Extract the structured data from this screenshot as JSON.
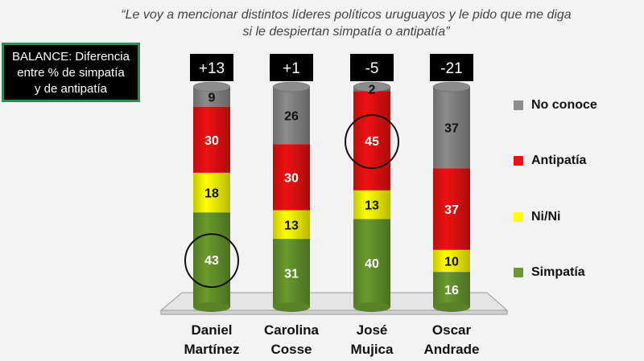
{
  "title": "“Le voy a mencionar distintos líderes políticos uruguayos y le pido que me diga si le despiertan simpatía o antipatía”",
  "balance_box": {
    "line1": "BALANCE: Diferencia",
    "line2": "entre % de simpatía",
    "line3": "y de antipatía"
  },
  "chart_data": {
    "type": "bar",
    "stacked": true,
    "categories": [
      {
        "line1": "Daniel",
        "line2": "Martínez"
      },
      {
        "line1": "Carolina",
        "line2": "Cosse"
      },
      {
        "line1": "José",
        "line2": "Mujica"
      },
      {
        "line1": "Oscar",
        "line2": "Andrade"
      }
    ],
    "balance": [
      "+13",
      "+1",
      "-5",
      "-21"
    ],
    "series": [
      {
        "name": "Simpatía",
        "color": "#6a9a2e",
        "values": [
          43,
          31,
          40,
          16
        ]
      },
      {
        "name": "Ni/Ni",
        "color": "#ffff00",
        "values": [
          18,
          13,
          13,
          10
        ]
      },
      {
        "name": "Antipatía",
        "color": "#ee1111",
        "values": [
          30,
          30,
          45,
          37
        ]
      },
      {
        "name": "No conoce",
        "color": "#8c8c8c",
        "values": [
          9,
          26,
          2,
          37
        ]
      }
    ],
    "label_colors": {
      "Simpatía": "#ffffff",
      "Ni/Ni": "#111111",
      "Antipatía": "#ffffff",
      "No conoce": "#111111"
    },
    "highlighted": [
      {
        "category": 0,
        "series": "Simpatía"
      },
      {
        "category": 2,
        "series": "Antipatía"
      }
    ],
    "legend_order": [
      "No conoce",
      "Antipatía",
      "Ni/Ni",
      "Simpatía"
    ],
    "legend_position": "right"
  }
}
